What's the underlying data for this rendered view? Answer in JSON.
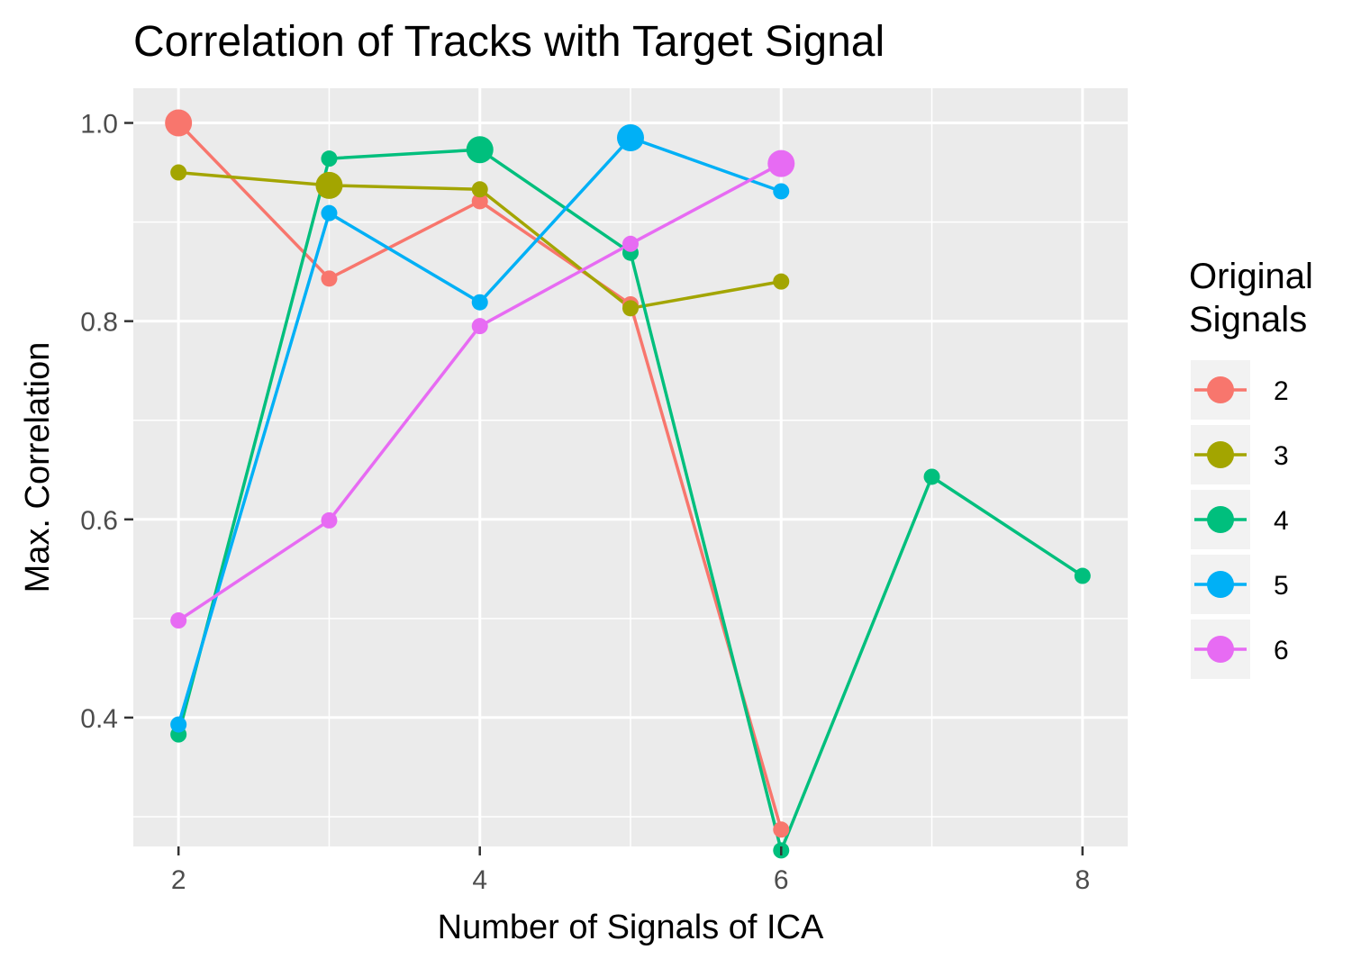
{
  "chart_data": {
    "type": "line",
    "title": "Correlation of Tracks with Target Signal",
    "xlabel": "Number of Signals of ICA",
    "ylabel": "Max. Correlation",
    "xlim": [
      1.7,
      8.3
    ],
    "ylim": [
      0.27,
      1.035
    ],
    "x_ticks": [
      2,
      4,
      6,
      8
    ],
    "x_tick_labels": [
      "2",
      "4",
      "6",
      "8"
    ],
    "y_ticks": [
      0.4,
      0.6,
      0.8,
      1.0
    ],
    "y_tick_labels": [
      "0.4",
      "0.6",
      "0.8",
      "1.0"
    ],
    "grid": true,
    "legend": {
      "title_lines": [
        "Original",
        "Signals"
      ],
      "placement": "right"
    },
    "series": [
      {
        "name": "2",
        "color": "#F8766D",
        "points": [
          [
            2,
            1.0
          ],
          [
            3,
            0.843
          ],
          [
            4,
            0.921
          ],
          [
            5,
            0.817
          ],
          [
            6,
            0.287
          ]
        ],
        "highlight_x": 2
      },
      {
        "name": "3",
        "color": "#A3A500",
        "points": [
          [
            2,
            0.95
          ],
          [
            3,
            0.937
          ],
          [
            4,
            0.933
          ],
          [
            5,
            0.813
          ],
          [
            6,
            0.84
          ]
        ],
        "highlight_x": 3
      },
      {
        "name": "4",
        "color": "#00BF7D",
        "points": [
          [
            2,
            0.383
          ],
          [
            3,
            0.964
          ],
          [
            4,
            0.973
          ],
          [
            5,
            0.869
          ],
          [
            6,
            0.266
          ],
          [
            7,
            0.643
          ],
          [
            8,
            0.543
          ]
        ],
        "highlight_x": 4
      },
      {
        "name": "5",
        "color": "#00B0F6",
        "points": [
          [
            2,
            0.393
          ],
          [
            3,
            0.909
          ],
          [
            4,
            0.819
          ],
          [
            5,
            0.985
          ],
          [
            6,
            0.931
          ]
        ],
        "highlight_x": 5
      },
      {
        "name": "6",
        "color": "#E76BF3",
        "points": [
          [
            2,
            0.498
          ],
          [
            3,
            0.599
          ],
          [
            4,
            0.795
          ],
          [
            5,
            0.878
          ],
          [
            6,
            0.959
          ]
        ],
        "highlight_x": 6
      }
    ]
  }
}
